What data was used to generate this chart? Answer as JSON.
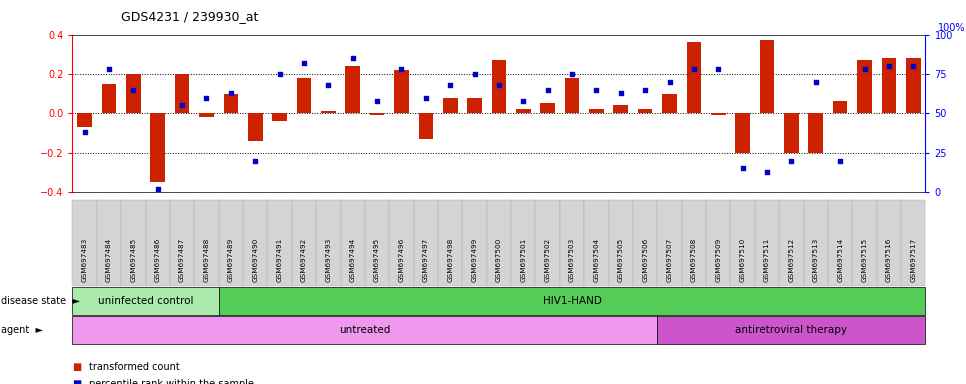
{
  "title": "GDS4231 / 239930_at",
  "samples": [
    "GSM697483",
    "GSM697484",
    "GSM697485",
    "GSM697486",
    "GSM697487",
    "GSM697488",
    "GSM697489",
    "GSM697490",
    "GSM697491",
    "GSM697492",
    "GSM697493",
    "GSM697494",
    "GSM697495",
    "GSM697496",
    "GSM697497",
    "GSM697498",
    "GSM697499",
    "GSM697500",
    "GSM697501",
    "GSM697502",
    "GSM697503",
    "GSM697504",
    "GSM697505",
    "GSM697506",
    "GSM697507",
    "GSM697508",
    "GSM697509",
    "GSM697510",
    "GSM697511",
    "GSM697512",
    "GSM697513",
    "GSM697514",
    "GSM697515",
    "GSM697516",
    "GSM697517"
  ],
  "bar_values": [
    -0.07,
    0.15,
    0.2,
    -0.35,
    0.2,
    -0.02,
    0.1,
    -0.14,
    -0.04,
    0.18,
    0.01,
    0.24,
    -0.01,
    0.22,
    -0.13,
    0.08,
    0.08,
    0.27,
    0.02,
    0.05,
    0.18,
    0.02,
    0.04,
    0.02,
    0.1,
    0.36,
    -0.01,
    -0.2,
    0.37,
    -0.2,
    -0.2,
    0.06,
    0.27,
    0.28,
    0.28
  ],
  "dot_values_pct": [
    38,
    78,
    65,
    2,
    55,
    60,
    63,
    20,
    75,
    82,
    68,
    85,
    58,
    78,
    60,
    68,
    75,
    68,
    58,
    65,
    75,
    65,
    63,
    65,
    70,
    78,
    78,
    15,
    13,
    20,
    70,
    20,
    78,
    80,
    80
  ],
  "bar_color": "#cc2200",
  "dot_color": "#0000cc",
  "ylim_left": [
    -0.4,
    0.4
  ],
  "ylim_right": [
    0,
    100
  ],
  "yticks_left": [
    -0.4,
    -0.2,
    0.0,
    0.2,
    0.4
  ],
  "yticks_right": [
    0,
    25,
    50,
    75,
    100
  ],
  "hlines": [
    -0.2,
    0.0,
    0.2
  ],
  "disease_state_groups": [
    {
      "label": "uninfected control",
      "start": 0,
      "end": 6,
      "color": "#aaeaaa"
    },
    {
      "label": "HIV1-HAND",
      "start": 6,
      "end": 35,
      "color": "#55cc55"
    }
  ],
  "agent_groups": [
    {
      "label": "untreated",
      "start": 0,
      "end": 24,
      "color": "#ee99ee"
    },
    {
      "label": "antiretroviral therapy",
      "start": 24,
      "end": 35,
      "color": "#cc55cc"
    }
  ],
  "legend_items": [
    {
      "label": "transformed count",
      "color": "#cc2200"
    },
    {
      "label": "percentile rank within the sample",
      "color": "#0000cc"
    }
  ],
  "row_label_disease": "disease state",
  "row_label_agent": "agent",
  "ticklabel_bg": "#d4d4d4"
}
